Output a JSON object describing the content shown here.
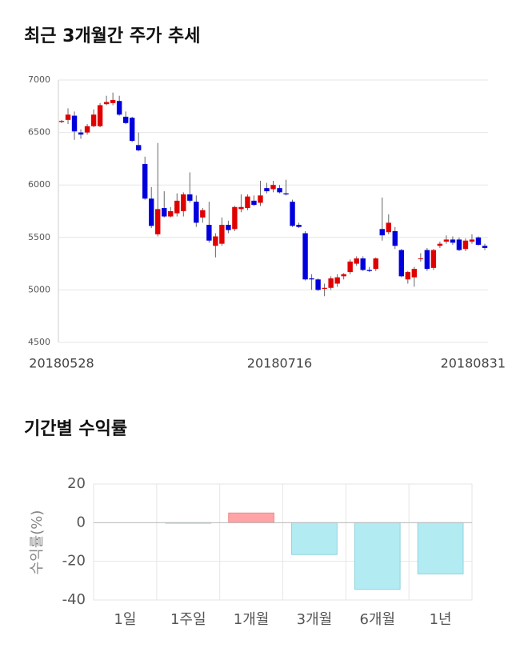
{
  "chart_data": [
    {
      "type": "candlestick",
      "title": "최근 3개월간 주가 추세",
      "categories": [
        "20180528",
        null,
        null,
        null,
        null,
        null,
        null,
        null,
        null,
        null,
        null,
        null,
        null,
        null,
        null,
        null,
        null,
        null,
        null,
        null,
        null,
        null,
        null,
        null,
        null,
        null,
        null,
        null,
        null,
        null,
        null,
        null,
        null,
        null,
        "20180716",
        null,
        null,
        null,
        null,
        null,
        null,
        null,
        null,
        null,
        null,
        null,
        null,
        null,
        null,
        null,
        null,
        null,
        null,
        null,
        null,
        null,
        null,
        null,
        null,
        null,
        null,
        null,
        null,
        null,
        null,
        null,
        "20180831"
      ],
      "open": [
        6600,
        6620,
        6660,
        6500,
        6500,
        6560,
        6560,
        6770,
        6780,
        6800,
        6650,
        6640,
        6380,
        6200,
        5870,
        5530,
        5780,
        5700,
        5730,
        5750,
        5910,
        5840,
        5690,
        5620,
        5420,
        5440,
        5620,
        5580,
        5770,
        5780,
        5850,
        5830,
        5970,
        5960,
        5970,
        5920,
        5840,
        5620,
        5540,
        5110,
        5100,
        5010,
        5020,
        5060,
        5130,
        5170,
        5250,
        5300,
        5190,
        5200,
        5580,
        5550,
        5560,
        5380,
        5100,
        5120,
        5300,
        5380,
        5210,
        5420,
        5460,
        5480,
        5480,
        5390,
        5460,
        5500,
        5420
      ],
      "high": [
        6620,
        6730,
        6700,
        6530,
        6580,
        6720,
        6780,
        6850,
        6880,
        6850,
        6700,
        6650,
        6500,
        6270,
        5980,
        6400,
        5940,
        5790,
        5920,
        5930,
        6120,
        5900,
        5780,
        5840,
        5540,
        5690,
        5660,
        5800,
        5910,
        5910,
        5900,
        6040,
        6020,
        6040,
        6000,
        6050,
        5860,
        5640,
        5560,
        5150,
        5110,
        5060,
        5130,
        5150,
        5160,
        5290,
        5320,
        5320,
        5220,
        5310,
        5880,
        5720,
        5600,
        5390,
        5180,
        5220,
        5350,
        5400,
        5390,
        5460,
        5520,
        5510,
        5500,
        5490,
        5530,
        5510,
        5440
      ],
      "low": [
        6590,
        6580,
        6430,
        6440,
        6480,
        6550,
        6550,
        6760,
        6760,
        6660,
        6580,
        6410,
        6320,
        5860,
        5590,
        5510,
        5690,
        5690,
        5700,
        5700,
        5830,
        5600,
        5640,
        5450,
        5310,
        5420,
        5540,
        5560,
        5740,
        5760,
        5800,
        5800,
        5920,
        5930,
        5920,
        5900,
        5600,
        5590,
        5090,
        5000,
        4990,
        4940,
        5000,
        5030,
        5100,
        5150,
        5230,
        5180,
        5170,
        5180,
        5470,
        5530,
        5390,
        5120,
        5060,
        5030,
        5270,
        5180,
        5190,
        5400,
        5440,
        5430,
        5370,
        5370,
        5440,
        5420,
        5380
      ],
      "close": [
        6610,
        6670,
        6510,
        6480,
        6560,
        6670,
        6760,
        6790,
        6810,
        6670,
        6590,
        6420,
        6330,
        5870,
        5610,
        5770,
        5700,
        5750,
        5850,
        5910,
        5850,
        5640,
        5760,
        5470,
        5510,
        5620,
        5570,
        5790,
        5790,
        5890,
        5810,
        5900,
        5940,
        6000,
        5930,
        5910,
        5610,
        5600,
        5100,
        5100,
        5000,
        5020,
        5110,
        5120,
        5150,
        5270,
        5300,
        5190,
        5180,
        5300,
        5520,
        5640,
        5420,
        5130,
        5170,
        5200,
        5300,
        5200,
        5380,
        5440,
        5480,
        5450,
        5380,
        5470,
        5480,
        5430,
        5400
      ],
      "up_color": "#e00000",
      "down_color": "#0000dd",
      "ylim": [
        4500,
        7000
      ],
      "yticks": [
        4500,
        5000,
        5500,
        6000,
        6500,
        7000
      ],
      "grid": true
    },
    {
      "type": "bar",
      "title": "기간별 수익률",
      "ylabel": "수익률(%)",
      "categories": [
        "1일",
        "1주일",
        "1개월",
        "3개월",
        "6개월",
        "1년"
      ],
      "values": [
        0,
        -0.3,
        5,
        -16.5,
        -34.5,
        -26.5
      ],
      "positive_color": "#ffa3a6",
      "negative_color": "#b3ebf3",
      "ylim": [
        -40,
        20
      ],
      "yticks": [
        -40,
        -20,
        0,
        20
      ],
      "grid": true
    }
  ]
}
